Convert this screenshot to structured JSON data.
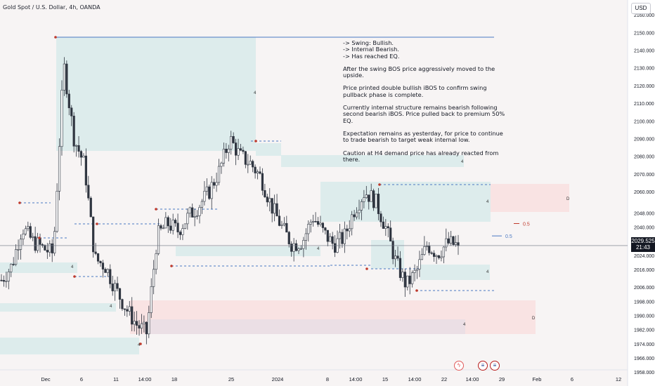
{
  "header": {
    "title": "Gold Spot / U.S. Dollar, 4h, OANDA"
  },
  "currency_label": "USD",
  "price_tag": {
    "price": "2029.525",
    "countdown": "21:43"
  },
  "annotation": {
    "lines": [
      "-> Swing: Bullish.",
      "-> Internal Bearish.",
      "-> Has reached EQ.",
      "After the swing BOS price aggressively moved to the upside.",
      "Price printed double bullish iBOS to confirm swing pullback phase is complete.",
      "Currently internal structure remains bearish following second bearish iBOS.  Price pulled back to premium 50% EQ.",
      "Expectation remains as yesterday, for price to continue to trade bearish to target weak internal low.",
      "Caution at H4 demand price has already reacted from there."
    ]
  },
  "chart_data": {
    "type": "candlestick",
    "title": "Gold Spot / U.S. Dollar, 4h, OANDA",
    "ylabel": "USD",
    "ylim": [
      1955,
      2165
    ],
    "y_ticks": [
      1958.0,
      1966.0,
      1974.0,
      1982.0,
      1990.0,
      1998.0,
      2006.0,
      2016.0,
      2024.0,
      2032.0,
      2040.0,
      2048.0,
      2060.0,
      2070.0,
      2080.0,
      2090.0,
      2100.0,
      2110.0,
      2120.0,
      2130.0,
      2140.0,
      2150.0,
      2160.0
    ],
    "x_ticks": [
      "Dec",
      "6",
      "11",
      "14:00",
      "18",
      "25",
      "2024",
      "8",
      "14:00",
      "15",
      "14:00",
      "22",
      "14:00",
      "29",
      "Feb",
      "6",
      "12"
    ],
    "last_price": 2029.525,
    "close_path": [
      2010,
      2018,
      2040,
      2032,
      2028,
      2025,
      2132,
      2090,
      2075,
      2022,
      2018,
      2005,
      1994,
      1985,
      1980,
      2035,
      2042,
      2038,
      2046,
      2052,
      2060,
      2072,
      2090,
      2080,
      2076,
      2068,
      2052,
      2040,
      2030,
      2032,
      2046,
      2037,
      2030,
      2034,
      2050,
      2060,
      2055,
      2040,
      2020,
      2007,
      2015,
      2030,
      2025,
      2031,
      2029.525
    ],
    "levels": [
      {
        "label": "0.5",
        "price": 2035
      },
      {
        "label": "0.5",
        "price": 2042
      },
      {
        "label": "4",
        "price": 2143
      },
      {
        "label": "D",
        "price": 2060
      }
    ],
    "zones": [
      {
        "kind": "supply",
        "label": "D"
      },
      {
        "kind": "demand",
        "label": "4"
      }
    ]
  }
}
